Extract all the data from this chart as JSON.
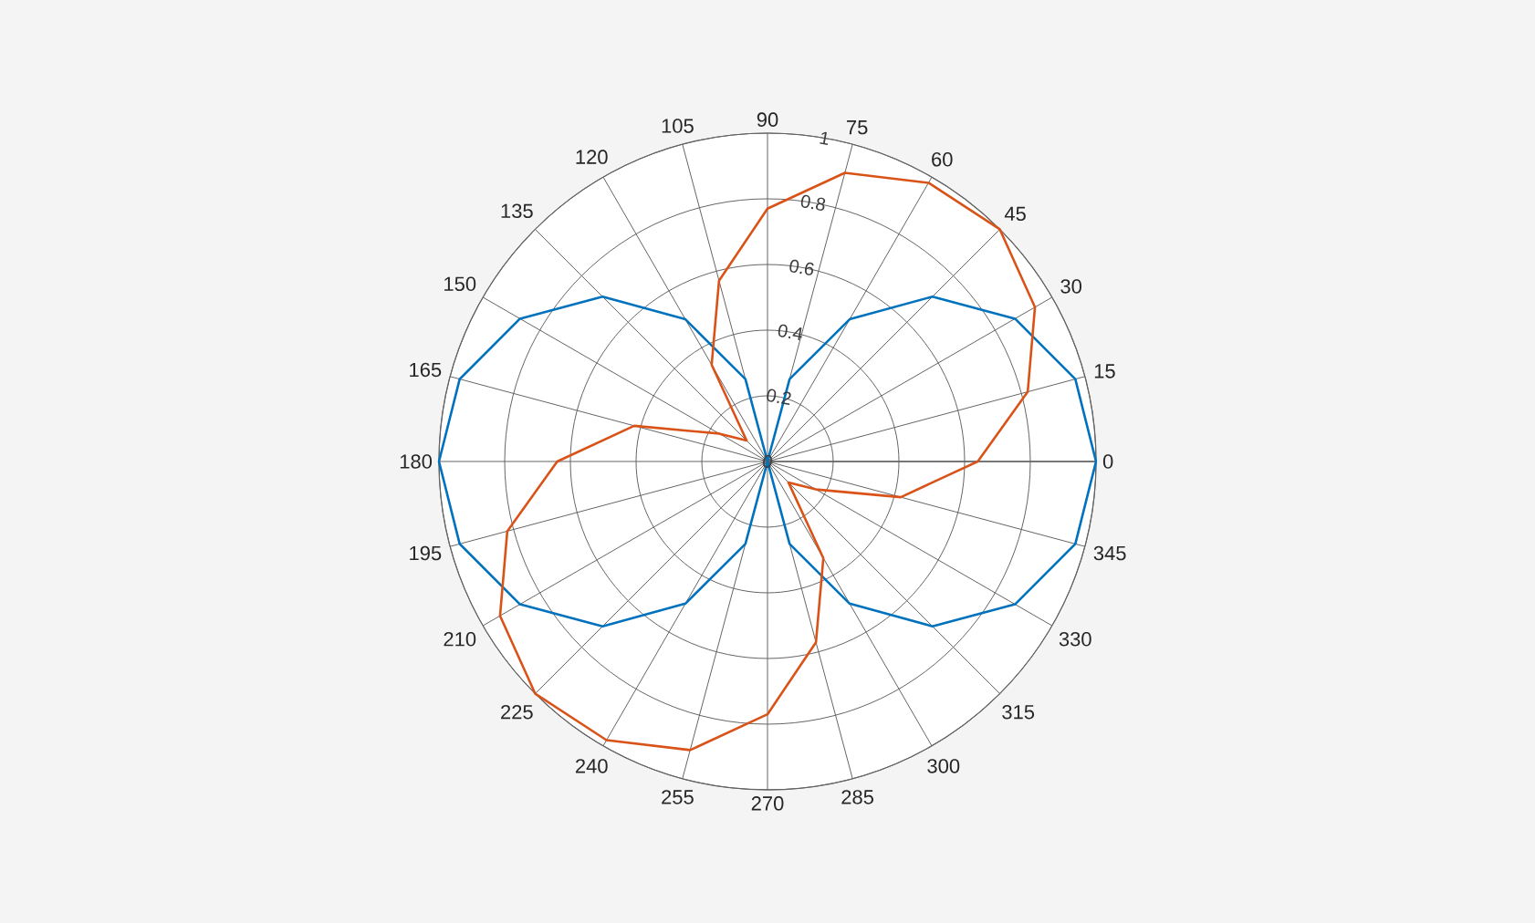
{
  "chart_data": {
    "type": "radar",
    "categories": [
      "90",
      "75",
      "60",
      "45",
      "30",
      "15",
      "0",
      "345",
      "330",
      "315",
      "300",
      "285",
      "270",
      "255",
      "240",
      "225",
      "210",
      "195",
      "180",
      "165",
      "150",
      "135",
      "120",
      "105"
    ],
    "series": [
      {
        "color": "#0072bd",
        "values": [
          0,
          0.26,
          0.5,
          0.71,
          0.87,
          0.97,
          1,
          0.97,
          0.87,
          0.71,
          0.5,
          0.26,
          0,
          0.26,
          0.5,
          0.71,
          0.87,
          0.97,
          1,
          0.97,
          0.87,
          0.71,
          0.5,
          0.26
        ]
      },
      {
        "color": "#d95319",
        "values": [
          0.77,
          0.91,
          0.98,
          1,
          0.94,
          0.82,
          0.64,
          0.42,
          0.17,
          0.09,
          0.34,
          0.57,
          0.77,
          0.91,
          0.98,
          1,
          0.94,
          0.82,
          0.64,
          0.42,
          0.17,
          0.09,
          0.34,
          0.57
        ]
      }
    ],
    "ylim": [
      0,
      1
    ],
    "yticks": [
      0,
      0.2,
      0.4,
      0.6,
      0.8,
      1
    ],
    "grid": true
  }
}
